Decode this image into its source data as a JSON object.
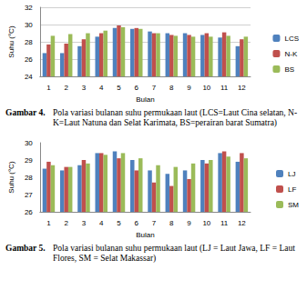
{
  "chart_data": [
    {
      "type": "bar",
      "caption_label": "Gambar 4.",
      "caption": "Pola variasi bulanan suhu permukaan laut (LCS=Laut Cina selatan, N-K=Laut Natuna dan Selat Karimata, BS=perairan barat Sumatra)",
      "xlabel": "Bulan",
      "ylabel": "Suhu (°C)",
      "categories": [
        "1",
        "2",
        "3",
        "4",
        "5",
        "6",
        "7",
        "8",
        "9",
        "10",
        "11",
        "12"
      ],
      "series": [
        {
          "name": "LCS",
          "color": "#4f81bd",
          "values": [
            26.7,
            26.7,
            27.5,
            28.6,
            29.6,
            29.5,
            29.2,
            29.0,
            29.0,
            28.8,
            28.5,
            27.5
          ]
        },
        {
          "name": "N-K",
          "color": "#c0504d",
          "values": [
            27.7,
            27.8,
            28.3,
            29.0,
            29.9,
            29.6,
            29.0,
            28.8,
            28.8,
            29.0,
            29.1,
            28.3
          ]
        },
        {
          "name": "BS",
          "color": "#9bbb59",
          "values": [
            28.7,
            28.9,
            29.0,
            29.3,
            29.7,
            29.5,
            29.0,
            28.7,
            28.6,
            28.6,
            28.7,
            28.6
          ]
        }
      ],
      "ylim": [
        24,
        32
      ],
      "yticks": [
        24,
        26,
        28,
        30,
        32
      ],
      "grid": true,
      "legend": "right"
    },
    {
      "type": "bar",
      "caption_label": "Gambar 5.",
      "caption": "Pola variasi bulanan suhu permukaan laut (LJ = Laut Jawa, LF = Laut Flores, SM = Selat Makassar)",
      "xlabel": "Bulan",
      "ylabel": "Suhu (°C)",
      "categories": [
        "1",
        "2",
        "3",
        "4",
        "5",
        "6",
        "7",
        "8",
        "9",
        "10",
        "11",
        "12"
      ],
      "series": [
        {
          "name": "LJ",
          "color": "#4f81bd",
          "values": [
            28.5,
            28.4,
            28.7,
            29.4,
            29.5,
            29.0,
            28.4,
            28.2,
            28.4,
            29.0,
            29.4,
            28.9
          ]
        },
        {
          "name": "LF",
          "color": "#c0504d",
          "values": [
            28.9,
            28.6,
            29.0,
            29.4,
            29.1,
            28.4,
            27.7,
            27.5,
            27.9,
            28.8,
            29.5,
            29.4
          ]
        },
        {
          "name": "SM",
          "color": "#9bbb59",
          "values": [
            28.7,
            28.6,
            28.8,
            29.3,
            29.4,
            29.1,
            28.7,
            28.6,
            28.8,
            29.0,
            29.2,
            29.1
          ]
        }
      ],
      "ylim": [
        26,
        30
      ],
      "yticks": [
        26,
        27,
        28,
        29,
        30
      ],
      "grid": false,
      "legend": "right"
    }
  ]
}
